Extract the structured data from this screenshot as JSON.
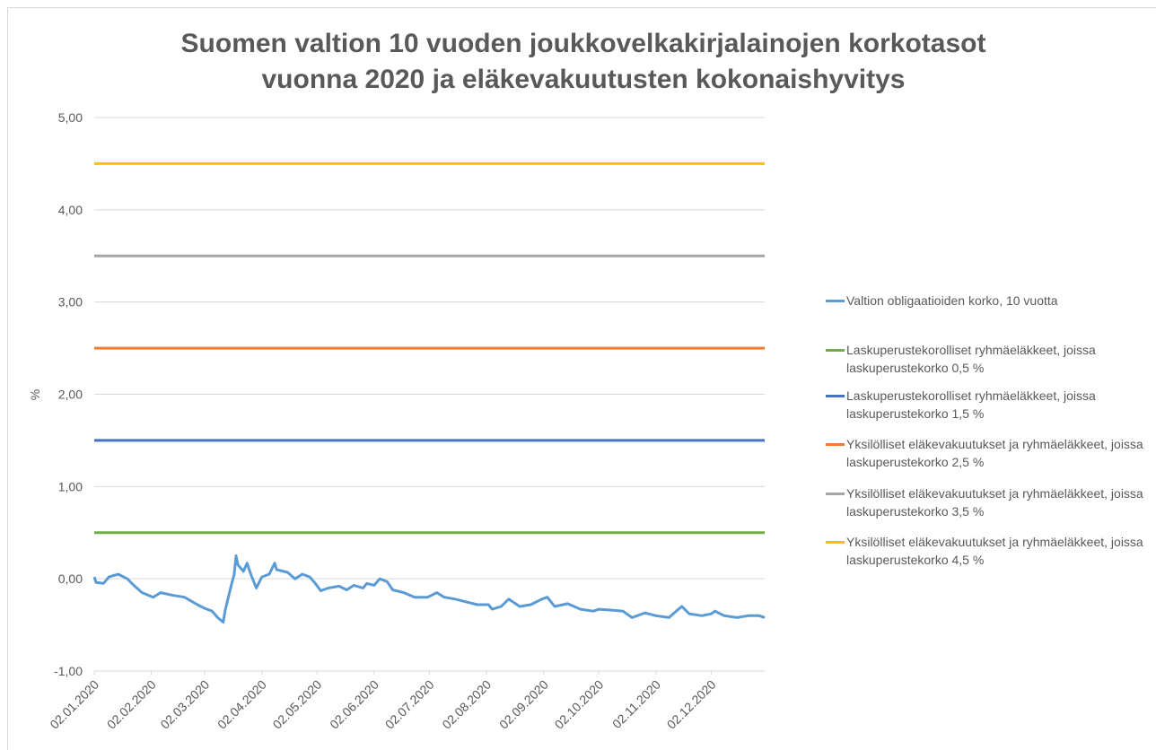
{
  "chart_data": {
    "type": "line",
    "title": [
      "Suomen valtion 10 vuoden joukkovelkakirjalainojen korkotasot",
      "vuonna 2020 ja eläkevakuutusten kokonaishyvitys"
    ],
    "y_label": "%",
    "ylim": [
      -1,
      5
    ],
    "yticks": [
      {
        "value": -1,
        "label": "-1,00"
      },
      {
        "value": 0,
        "label": "0,00"
      },
      {
        "value": 1,
        "label": "1,00"
      },
      {
        "value": 2,
        "label": "2,00"
      },
      {
        "value": 3,
        "label": "3,00"
      },
      {
        "value": 4,
        "label": "4,00"
      },
      {
        "value": 5,
        "label": "5,00"
      }
    ],
    "xlim": [
      "02.01.2020",
      "31.12.2020"
    ],
    "xticks": [
      "02.01.2020",
      "02.02.2020",
      "02.03.2020",
      "02.04.2020",
      "02.05.2020",
      "02.06.2020",
      "02.07.2020",
      "02.08.2020",
      "02.09.2020",
      "02.10.2020",
      "02.11.2020",
      "02.12.2020"
    ],
    "grid": true,
    "legend": "right",
    "series": [
      {
        "name": "Valtion obligaatioiden korko, 10 vuotta",
        "color": "#5b9bd5",
        "x": [
          "02.01.2020",
          "03.01.2020",
          "07.01.2020",
          "10.01.2020",
          "15.01.2020",
          "20.01.2020",
          "24.01.2020",
          "28.01.2020",
          "03.02.2020",
          "07.02.2020",
          "14.02.2020",
          "20.02.2020",
          "27.02.2020",
          "02.03.2020",
          "06.03.2020",
          "09.03.2020",
          "12.03.2020",
          "13.03.2020",
          "16.03.2020",
          "18.03.2020",
          "19.03.2020",
          "20.03.2020",
          "23.03.2020",
          "25.03.2020",
          "27.03.2020",
          "30.03.2020",
          "02.04.2020",
          "06.04.2020",
          "09.04.2020",
          "10.04.2020",
          "16.04.2020",
          "20.04.2020",
          "24.04.2020",
          "28.04.2020",
          "01.05.2020",
          "04.05.2020",
          "08.05.2020",
          "14.05.2020",
          "18.05.2020",
          "22.05.2020",
          "27.05.2020",
          "29.05.2020",
          "02.06.2020",
          "05.06.2020",
          "09.06.2020",
          "12.06.2020",
          "18.06.2020",
          "24.06.2020",
          "01.07.2020",
          "06.07.2020",
          "10.07.2020",
          "16.07.2020",
          "22.07.2020",
          "28.07.2020",
          "03.08.2020",
          "05.08.2020",
          "10.08.2020",
          "14.08.2020",
          "20.08.2020",
          "26.08.2020",
          "01.09.2020",
          "04.09.2020",
          "08.09.2020",
          "15.09.2020",
          "22.09.2020",
          "29.09.2020",
          "02.10.2020",
          "09.10.2020",
          "15.10.2020",
          "20.10.2020",
          "27.10.2020",
          "02.11.2020",
          "09.11.2020",
          "13.11.2020",
          "16.11.2020",
          "20.11.2020",
          "27.11.2020",
          "02.12.2020",
          "04.12.2020",
          "09.12.2020",
          "16.12.2020",
          "22.12.2020",
          "28.12.2020",
          "31.12.2020"
        ],
        "values": [
          0.02,
          -0.04,
          -0.05,
          0.02,
          0.05,
          0.0,
          -0.08,
          -0.15,
          -0.2,
          -0.15,
          -0.18,
          -0.2,
          -0.28,
          -0.32,
          -0.35,
          -0.42,
          -0.47,
          -0.35,
          -0.1,
          0.05,
          0.25,
          0.15,
          0.08,
          0.17,
          0.05,
          -0.1,
          0.02,
          0.05,
          0.17,
          0.1,
          0.07,
          0.0,
          0.05,
          0.02,
          -0.05,
          -0.13,
          -0.1,
          -0.08,
          -0.12,
          -0.07,
          -0.1,
          -0.05,
          -0.07,
          0.0,
          -0.03,
          -0.12,
          -0.15,
          -0.2,
          -0.2,
          -0.15,
          -0.2,
          -0.22,
          -0.25,
          -0.28,
          -0.28,
          -0.33,
          -0.3,
          -0.22,
          -0.3,
          -0.28,
          -0.22,
          -0.2,
          -0.3,
          -0.27,
          -0.33,
          -0.35,
          -0.33,
          -0.34,
          -0.35,
          -0.42,
          -0.37,
          -0.4,
          -0.42,
          -0.35,
          -0.3,
          -0.38,
          -0.4,
          -0.38,
          -0.35,
          -0.4,
          -0.42,
          -0.4,
          -0.4,
          -0.42
        ]
      },
      {
        "name": "Laskuperustekorolliset ryhmäeläkkeet, joissa laskuperustekorko 0,5 %",
        "color": "#70ad47",
        "value": 0.5
      },
      {
        "name": "Laskuperustekorolliset ryhmäeläkkeet, joissa laskuperustekorko 1,5 %",
        "color": "#4472c4",
        "value": 1.5
      },
      {
        "name": "Yksilölliset eläkevakuutukset ja ryhmäeläkkeet, joissa laskuperustekorko 2,5 %",
        "color": "#ed7d31",
        "value": 2.5
      },
      {
        "name": "Yksilölliset eläkevakuutukset ja ryhmäeläkkeet, joissa laskuperustekorko 3,5 %",
        "color": "#a5a5a5",
        "value": 3.5
      },
      {
        "name": "Yksilölliset eläkevakuutukset ja ryhmäeläkkeet, joissa laskuperustekorko 4,5 %",
        "color": "#ffc000",
        "value": 4.5
      }
    ]
  }
}
